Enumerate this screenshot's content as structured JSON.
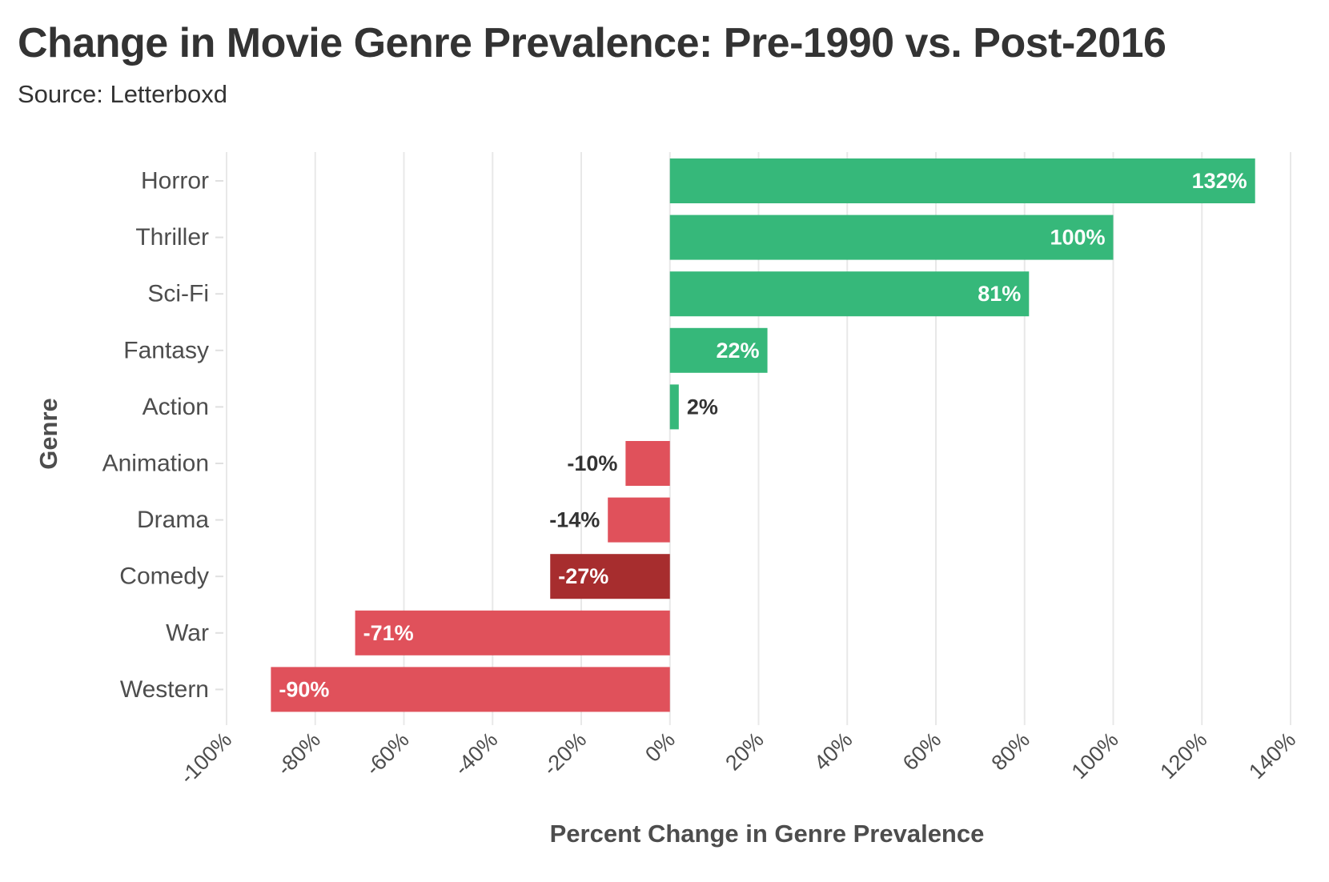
{
  "title": "Change in Movie Genre Prevalence: Pre-1990 vs. Post-2016",
  "subtitle": "Source: Letterboxd",
  "colors": {
    "positive": "#36b87a",
    "negative": "#e0515b",
    "highlight": "#a72d2e",
    "grid": "#e8e8e8",
    "text": "#333333",
    "axis_text": "#4d4d4d"
  },
  "chart_data": {
    "type": "bar",
    "orientation": "horizontal",
    "title": "Change in Movie Genre Prevalence: Pre-1990 vs. Post-2016",
    "subtitle": "Source: Letterboxd",
    "xlabel": "Percent Change in Genre Prevalence",
    "ylabel": "Genre",
    "categories": [
      "Horror",
      "Thriller",
      "Sci-Fi",
      "Fantasy",
      "Action",
      "Animation",
      "Drama",
      "Comedy",
      "War",
      "Western"
    ],
    "values": [
      132,
      100,
      81,
      22,
      2,
      -10,
      -14,
      -27,
      -71,
      -90
    ],
    "data_labels": [
      "132%",
      "100%",
      "81%",
      "22%",
      "2%",
      "-10%",
      "-14%",
      "-27%",
      "-71%",
      "-90%"
    ],
    "highlighted": [
      "Comedy"
    ],
    "xlim": [
      -100,
      140
    ],
    "xticks": [
      -100,
      -80,
      -60,
      -40,
      -20,
      0,
      20,
      40,
      60,
      80,
      100,
      120,
      140
    ],
    "xtick_labels": [
      "-100%",
      "-80%",
      "-60%",
      "-40%",
      "-20%",
      "0%",
      "20%",
      "40%",
      "60%",
      "80%",
      "100%",
      "120%",
      "140%"
    ],
    "grid": true,
    "legend": "none"
  }
}
